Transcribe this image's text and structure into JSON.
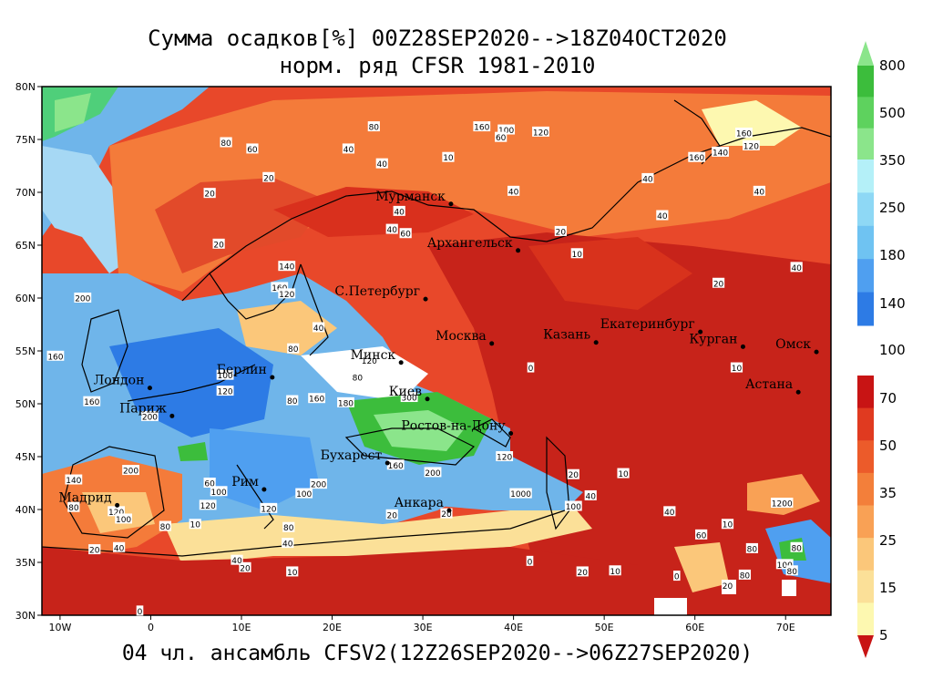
{
  "title_line1": "Сумма осадков[%] 00Z28SEP2020-->18Z04OCT2020",
  "title_line2": "норм. ряд CFSR 1981-2010",
  "subtitle": "04 чл. ансамбль CFSV2(12Z26SEP2020-->06Z27SEP2020)",
  "map": {
    "lon_range": [
      -12,
      75
    ],
    "lat_range": [
      30,
      80
    ],
    "x_ticks": [
      {
        "lon": -10,
        "label": "10W"
      },
      {
        "lon": 0,
        "label": "0"
      },
      {
        "lon": 10,
        "label": "10E"
      },
      {
        "lon": 20,
        "label": "20E"
      },
      {
        "lon": 30,
        "label": "30E"
      },
      {
        "lon": 40,
        "label": "40E"
      },
      {
        "lon": 50,
        "label": "50E"
      },
      {
        "lon": 60,
        "label": "60E"
      },
      {
        "lon": 70,
        "label": "70E"
      }
    ],
    "y_ticks": [
      {
        "lat": 80,
        "label": "80N"
      },
      {
        "lat": 75,
        "label": "75N"
      },
      {
        "lat": 70,
        "label": "70N"
      },
      {
        "lat": 65,
        "label": "65N"
      },
      {
        "lat": 60,
        "label": "60N"
      },
      {
        "lat": 55,
        "label": "55N"
      },
      {
        "lat": 50,
        "label": "50N"
      },
      {
        "lat": 45,
        "label": "45N"
      },
      {
        "lat": 40,
        "label": "40N"
      },
      {
        "lat": 35,
        "label": "35N"
      },
      {
        "lat": 30,
        "label": "30N"
      }
    ],
    "cities": [
      {
        "name": "Мурманск",
        "lon": 33.1,
        "lat": 68.9
      },
      {
        "name": "Архангельск",
        "lon": 40.5,
        "lat": 64.5
      },
      {
        "name": "С.Петербург",
        "lon": 30.3,
        "lat": 59.9
      },
      {
        "name": "Москва",
        "lon": 37.6,
        "lat": 55.7
      },
      {
        "name": "Казань",
        "lon": 49.1,
        "lat": 55.8
      },
      {
        "name": "Екатеринбург",
        "lon": 60.6,
        "lat": 56.8
      },
      {
        "name": "Курган",
        "lon": 65.3,
        "lat": 55.4
      },
      {
        "name": "Омск",
        "lon": 73.4,
        "lat": 54.9
      },
      {
        "name": "Астана",
        "lon": 71.4,
        "lat": 51.1
      },
      {
        "name": "Минск",
        "lon": 27.6,
        "lat": 53.9
      },
      {
        "name": "Берлин",
        "lon": 13.4,
        "lat": 52.5
      },
      {
        "name": "Лондон",
        "lon": -0.1,
        "lat": 51.5
      },
      {
        "name": "Париж",
        "lon": 2.35,
        "lat": 48.85
      },
      {
        "name": "Киев",
        "lon": 30.5,
        "lat": 50.45
      },
      {
        "name": "Ростов-на-Дону",
        "lon": 39.7,
        "lat": 47.2
      },
      {
        "name": "Бухарест",
        "lon": 26.1,
        "lat": 44.4
      },
      {
        "name": "Рим",
        "lon": 12.5,
        "lat": 41.9
      },
      {
        "name": "Мадрид",
        "lon": -3.7,
        "lat": 40.4
      },
      {
        "name": "Анкара",
        "lon": 32.9,
        "lat": 39.9
      }
    ],
    "contour_labels": [
      {
        "t": "160",
        "lon": 36.5,
        "lat": 76.2
      },
      {
        "t": "100",
        "lon": 39.2,
        "lat": 75.9
      },
      {
        "t": "120",
        "lon": 43,
        "lat": 75.7
      },
      {
        "t": "60",
        "lon": 38.6,
        "lat": 75.2
      },
      {
        "t": "80",
        "lon": 24.6,
        "lat": 76.2
      },
      {
        "t": "40",
        "lon": 25.5,
        "lat": 72.7
      },
      {
        "t": "10",
        "lon": 32.8,
        "lat": 73.3
      },
      {
        "t": "20",
        "lon": 6.5,
        "lat": 69.9
      },
      {
        "t": "20",
        "lon": 7.5,
        "lat": 65.1
      },
      {
        "t": "80",
        "lon": 8.3,
        "lat": 74.7
      },
      {
        "t": "60",
        "lon": 11.2,
        "lat": 74.1
      },
      {
        "t": "40",
        "lon": 21.8,
        "lat": 74.1
      },
      {
        "t": "20",
        "lon": 13,
        "lat": 71.4
      },
      {
        "t": "40",
        "lon": 40,
        "lat": 70.1
      },
      {
        "t": "40",
        "lon": 27.4,
        "lat": 68.2
      },
      {
        "t": "40",
        "lon": 26.6,
        "lat": 66.5
      },
      {
        "t": "60",
        "lon": 28.1,
        "lat": 66.1
      },
      {
        "t": "20",
        "lon": 45.2,
        "lat": 66.3
      },
      {
        "t": "10",
        "lon": 47,
        "lat": 64.2
      },
      {
        "t": "40",
        "lon": 54.8,
        "lat": 71.3
      },
      {
        "t": "40",
        "lon": 56.4,
        "lat": 67.8
      },
      {
        "t": "40",
        "lon": 67.1,
        "lat": 70.1
      },
      {
        "t": "40",
        "lon": 71.2,
        "lat": 62.9
      },
      {
        "t": "20",
        "lon": 62.6,
        "lat": 61.4
      },
      {
        "t": "160",
        "lon": 65.4,
        "lat": 75.6
      },
      {
        "t": "120",
        "lon": 66.2,
        "lat": 74.4
      },
      {
        "t": "140",
        "lon": 62.8,
        "lat": 73.8
      },
      {
        "t": "160",
        "lon": 60.2,
        "lat": 73.3
      },
      {
        "t": "140",
        "lon": 15,
        "lat": 63
      },
      {
        "t": "160",
        "lon": 14.2,
        "lat": 61
      },
      {
        "t": "120",
        "lon": 15,
        "lat": 60.4
      },
      {
        "t": "200",
        "lon": -7.5,
        "lat": 60
      },
      {
        "t": "160",
        "lon": -10.5,
        "lat": 54.5
      },
      {
        "t": "160",
        "lon": -6.5,
        "lat": 50.2
      },
      {
        "t": "200",
        "lon": -0.1,
        "lat": 48.8
      },
      {
        "t": "100",
        "lon": 8.2,
        "lat": 52.7
      },
      {
        "t": "120",
        "lon": 8.2,
        "lat": 51.2
      },
      {
        "t": "80",
        "lon": 15.6,
        "lat": 50.3
      },
      {
        "t": "160",
        "lon": 18.3,
        "lat": 50.5
      },
      {
        "t": "180",
        "lon": 21.5,
        "lat": 50.1
      },
      {
        "t": "300",
        "lon": 28.5,
        "lat": 50.6
      },
      {
        "t": "80",
        "lon": 22.8,
        "lat": 52.5
      },
      {
        "t": "80",
        "lon": 15.7,
        "lat": 55.2
      },
      {
        "t": "40",
        "lon": 18.5,
        "lat": 57.2
      },
      {
        "t": "120",
        "lon": 24.1,
        "lat": 54.1
      },
      {
        "t": "160",
        "lon": 27,
        "lat": 44.2
      },
      {
        "t": "200",
        "lon": 31.1,
        "lat": 43.5
      },
      {
        "t": "120",
        "lon": 39,
        "lat": 45
      },
      {
        "t": "0",
        "lon": 41.9,
        "lat": 53.4
      },
      {
        "t": "10",
        "lon": 64.6,
        "lat": 53.4
      },
      {
        "t": "20",
        "lon": 46.6,
        "lat": 43.3
      },
      {
        "t": "10",
        "lon": 52.1,
        "lat": 43.4
      },
      {
        "t": "1000",
        "lon": 40.8,
        "lat": 41.5
      },
      {
        "t": "100",
        "lon": 46.6,
        "lat": 40.3
      },
      {
        "t": "40",
        "lon": 48.5,
        "lat": 41.3
      },
      {
        "t": "40",
        "lon": 57.2,
        "lat": 39.8
      },
      {
        "t": "60",
        "lon": 60.7,
        "lat": 37.6
      },
      {
        "t": "10",
        "lon": 63.6,
        "lat": 38.6
      },
      {
        "t": "80",
        "lon": 66.3,
        "lat": 36.3
      },
      {
        "t": "80",
        "lon": 65.5,
        "lat": 33.8
      },
      {
        "t": "20",
        "lon": 63.6,
        "lat": 32.8
      },
      {
        "t": "0",
        "lon": 58,
        "lat": 33.7
      },
      {
        "t": "20",
        "lon": 47.6,
        "lat": 34.1
      },
      {
        "t": "10",
        "lon": 51.2,
        "lat": 34.2
      },
      {
        "t": "0",
        "lon": 41.8,
        "lat": 35.1
      },
      {
        "t": "20",
        "lon": 32.6,
        "lat": 39.6
      },
      {
        "t": "20",
        "lon": 26.6,
        "lat": 39.5
      },
      {
        "t": "10",
        "lon": 15.6,
        "lat": 34.1
      },
      {
        "t": "20",
        "lon": 10.4,
        "lat": 34.5
      },
      {
        "t": "40",
        "lon": 15.1,
        "lat": 36.8
      },
      {
        "t": "80",
        "lon": 15.2,
        "lat": 38.3
      },
      {
        "t": "120",
        "lon": 13,
        "lat": 40.1
      },
      {
        "t": "100",
        "lon": 16.9,
        "lat": 41.5
      },
      {
        "t": "200",
        "lon": 18.5,
        "lat": 42.4
      },
      {
        "t": "10",
        "lon": 4.9,
        "lat": 38.6
      },
      {
        "t": "80",
        "lon": 1.6,
        "lat": 38.4
      },
      {
        "t": "120",
        "lon": -3.8,
        "lat": 39.8
      },
      {
        "t": "100",
        "lon": -3,
        "lat": 39.1
      },
      {
        "t": "80",
        "lon": -8.5,
        "lat": 40.2
      },
      {
        "t": "40",
        "lon": -3.5,
        "lat": 36.4
      },
      {
        "t": "20",
        "lon": -6.2,
        "lat": 36.2
      },
      {
        "t": "0",
        "lon": -1.2,
        "lat": 30.4
      },
      {
        "t": "60",
        "lon": 6.5,
        "lat": 42.5
      },
      {
        "t": "100",
        "lon": 7.5,
        "lat": 41.7
      },
      {
        "t": "140",
        "lon": -8.5,
        "lat": 42.8
      },
      {
        "t": "200",
        "lon": -2.2,
        "lat": 43.7
      },
      {
        "t": "120",
        "lon": 6.3,
        "lat": 40.4
      },
      {
        "t": "40",
        "lon": 9.5,
        "lat": 35.2
      },
      {
        "t": "80",
        "lon": 71.2,
        "lat": 36.4
      },
      {
        "t": "1200",
        "lon": 69.6,
        "lat": 40.6
      },
      {
        "t": "100",
        "lon": 69.9,
        "lat": 34.8
      },
      {
        "t": "80",
        "lon": 70.7,
        "lat": 34.2
      }
    ],
    "colorbar": [
      {
        "from": 350,
        "to": 800,
        "colors": [
          "#3cbd3c",
          "#5ed25e",
          "#8be58b"
        ]
      },
      {
        "from": 100,
        "to": 350,
        "colors": [
          "#b4f0f8",
          "#8ed8f5",
          "#6fc3f2",
          "#4f9ff0",
          "#2d7be5"
        ]
      },
      {
        "from": 5,
        "to": 70,
        "colors": [
          "#c81414",
          "#e03a20",
          "#ec5b2a",
          "#f37f3a",
          "#f9a155",
          "#fbc77a",
          "#fbe098",
          "#fdf8b0"
        ]
      }
    ],
    "colorbar_labels": [
      "800",
      "500",
      "350",
      "250",
      "180",
      "140",
      "100",
      "70",
      "50",
      "35",
      "25",
      "15",
      "5"
    ]
  }
}
